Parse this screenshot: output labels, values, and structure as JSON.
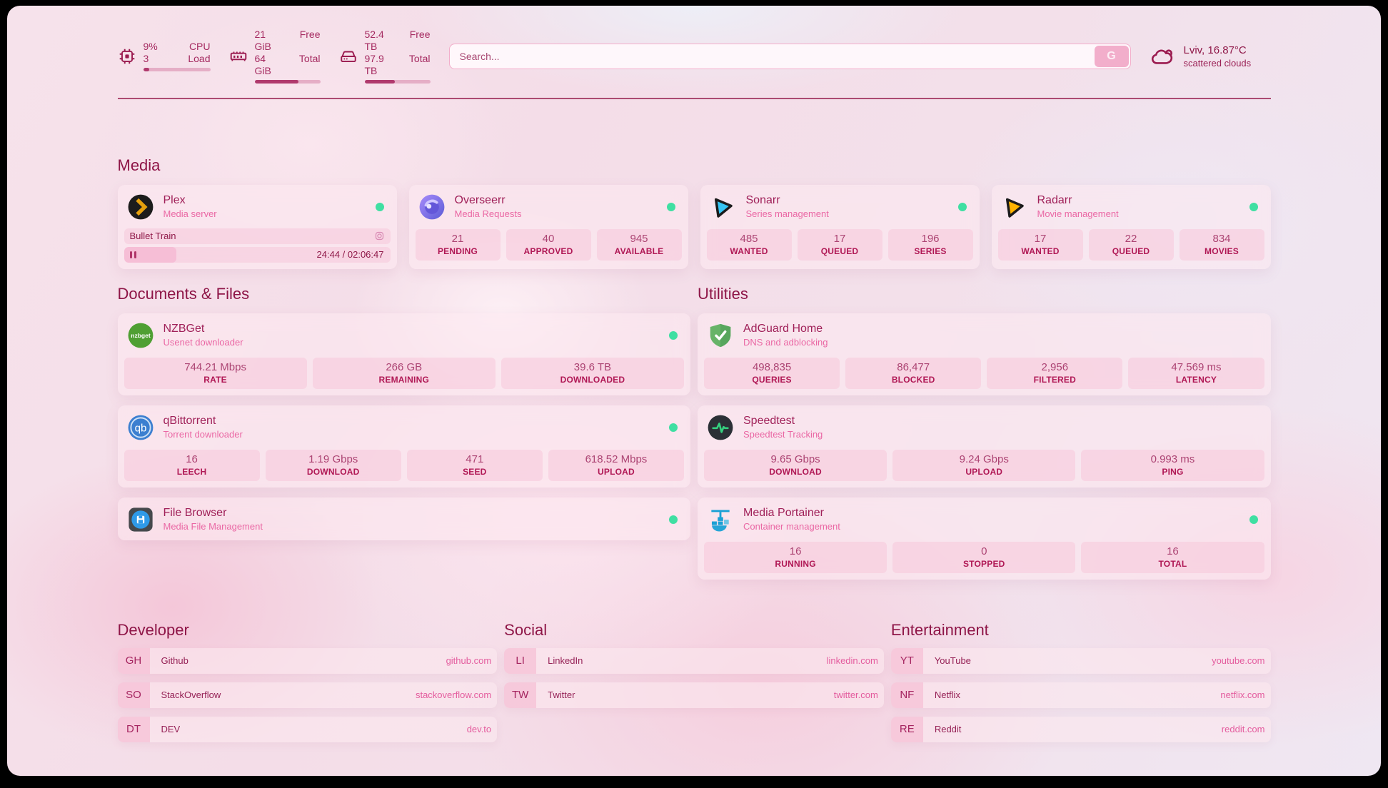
{
  "colors": {
    "accent": "#8e1547",
    "pink": "#e45c9e",
    "status_green": "#3fdfa2",
    "bar_fill": "#b03a6d"
  },
  "topbar": {
    "cpu": {
      "row1_value": "9%",
      "row1_label": "CPU",
      "row2_value": "3",
      "row2_label": "Load",
      "percent": 9
    },
    "ram": {
      "row1_value": "21 GiB",
      "row1_label": "Free",
      "row2_value": "64 GiB",
      "row2_label": "Total",
      "percent": 67
    },
    "disk": {
      "row1_value": "52.4 TB",
      "row1_label": "Free",
      "row2_value": "97.9 TB",
      "row2_label": "Total",
      "percent": 46
    },
    "search": {
      "placeholder": "Search...",
      "button": "G"
    },
    "weather": {
      "line1": "Lviv, 16.87°C",
      "line2": "scattered clouds"
    }
  },
  "media": {
    "heading": "Media",
    "plex": {
      "name": "Plex",
      "subtitle": "Media server",
      "online": true,
      "now_playing": {
        "title": "Bullet Train",
        "state": "paused",
        "time_display": "24:44 / 02:06:47",
        "progress_percent": 19.6
      }
    },
    "overseerr": {
      "name": "Overseerr",
      "subtitle": "Media Requests",
      "online": true,
      "stats": [
        {
          "value": "21",
          "label": "PENDING"
        },
        {
          "value": "40",
          "label": "APPROVED"
        },
        {
          "value": "945",
          "label": "AVAILABLE"
        }
      ]
    },
    "sonarr": {
      "name": "Sonarr",
      "subtitle": "Series management",
      "online": true,
      "stats": [
        {
          "value": "485",
          "label": "WANTED"
        },
        {
          "value": "17",
          "label": "QUEUED"
        },
        {
          "value": "196",
          "label": "SERIES"
        }
      ]
    },
    "radarr": {
      "name": "Radarr",
      "subtitle": "Movie management",
      "online": true,
      "stats": [
        {
          "value": "17",
          "label": "WANTED"
        },
        {
          "value": "22",
          "label": "QUEUED"
        },
        {
          "value": "834",
          "label": "MOVIES"
        }
      ]
    }
  },
  "documents": {
    "heading": "Documents & Files",
    "nzbget": {
      "name": "NZBGet",
      "subtitle": "Usenet downloader",
      "online": true,
      "stats": [
        {
          "value": "744.21 Mbps",
          "label": "RATE"
        },
        {
          "value": "266 GB",
          "label": "REMAINING"
        },
        {
          "value": "39.6 TB",
          "label": "DOWNLOADED"
        }
      ]
    },
    "qbittorrent": {
      "name": "qBittorrent",
      "subtitle": "Torrent downloader",
      "online": true,
      "stats": [
        {
          "value": "16",
          "label": "LEECH"
        },
        {
          "value": "1.19 Gbps",
          "label": "DOWNLOAD"
        },
        {
          "value": "471",
          "label": "SEED"
        },
        {
          "value": "618.52 Mbps",
          "label": "UPLOAD"
        }
      ]
    },
    "filebrowser": {
      "name": "File Browser",
      "subtitle": "Media File Management",
      "online": true
    }
  },
  "utilities": {
    "heading": "Utilities",
    "adguard": {
      "name": "AdGuard Home",
      "subtitle": "DNS and adblocking",
      "online": false,
      "stats": [
        {
          "value": "498,835",
          "label": "QUERIES"
        },
        {
          "value": "86,477",
          "label": "BLOCKED"
        },
        {
          "value": "2,956",
          "label": "FILTERED"
        },
        {
          "value": "47.569 ms",
          "label": "LATENCY"
        }
      ]
    },
    "speedtest": {
      "name": "Speedtest",
      "subtitle": "Speedtest Tracking",
      "online": false,
      "stats": [
        {
          "value": "9.65 Gbps",
          "label": "DOWNLOAD"
        },
        {
          "value": "9.24 Gbps",
          "label": "UPLOAD"
        },
        {
          "value": "0.993 ms",
          "label": "PING"
        }
      ]
    },
    "portainer": {
      "name": "Media Portainer",
      "subtitle": "Container management",
      "online": true,
      "stats": [
        {
          "value": "16",
          "label": "RUNNING"
        },
        {
          "value": "0",
          "label": "STOPPED"
        },
        {
          "value": "16",
          "label": "TOTAL"
        }
      ]
    }
  },
  "links": {
    "developer": {
      "heading": "Developer",
      "items": [
        {
          "abbr": "GH",
          "name": "Github",
          "url": "github.com"
        },
        {
          "abbr": "SO",
          "name": "StackOverflow",
          "url": "stackoverflow.com"
        },
        {
          "abbr": "DT",
          "name": "DEV",
          "url": "dev.to"
        }
      ]
    },
    "social": {
      "heading": "Social",
      "items": [
        {
          "abbr": "LI",
          "name": "LinkedIn",
          "url": "linkedin.com"
        },
        {
          "abbr": "TW",
          "name": "Twitter",
          "url": "twitter.com"
        }
      ]
    },
    "entertainment": {
      "heading": "Entertainment",
      "items": [
        {
          "abbr": "YT",
          "name": "YouTube",
          "url": "youtube.com"
        },
        {
          "abbr": "NF",
          "name": "Netflix",
          "url": "netflix.com"
        },
        {
          "abbr": "RE",
          "name": "Reddit",
          "url": "reddit.com"
        }
      ]
    }
  }
}
